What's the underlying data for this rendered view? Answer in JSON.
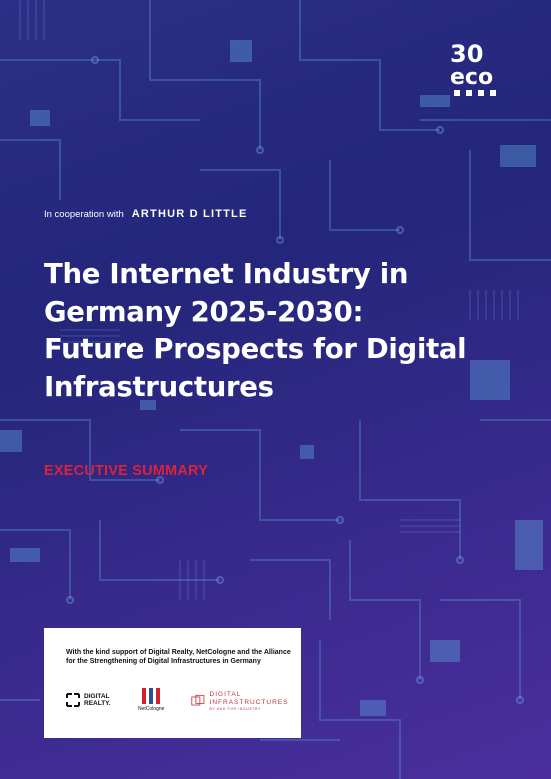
{
  "cooperation": {
    "prefix": "In cooperation with",
    "partner": "ARTHUR D LITTLE"
  },
  "brand": {
    "eco_number": "30",
    "eco_name": "eco"
  },
  "title_lines": [
    "The Internet Industry in",
    "Germany 2025-2030:",
    "Future Prospects for Digital",
    "Infrastructures"
  ],
  "subtitle": "EXECUTIVE SUMMARY",
  "support": {
    "text": "With the kind support of Digital Realty, NetCologne and the Alliance for the Strengthening of Digital Infrastructures in Germany",
    "logos": {
      "digital_realty": "DIGITAL REALTY.",
      "netcologne": "NetCologne",
      "digital_infrastructures": "DIGITAL INFRASTRUCTURES",
      "digital_infrastructures_sub": "BY AND FOR INDUSTRY"
    }
  },
  "colors": {
    "background": "#2b2f86",
    "accent_red": "#d9233a",
    "circuit": "#4a7fc0"
  }
}
